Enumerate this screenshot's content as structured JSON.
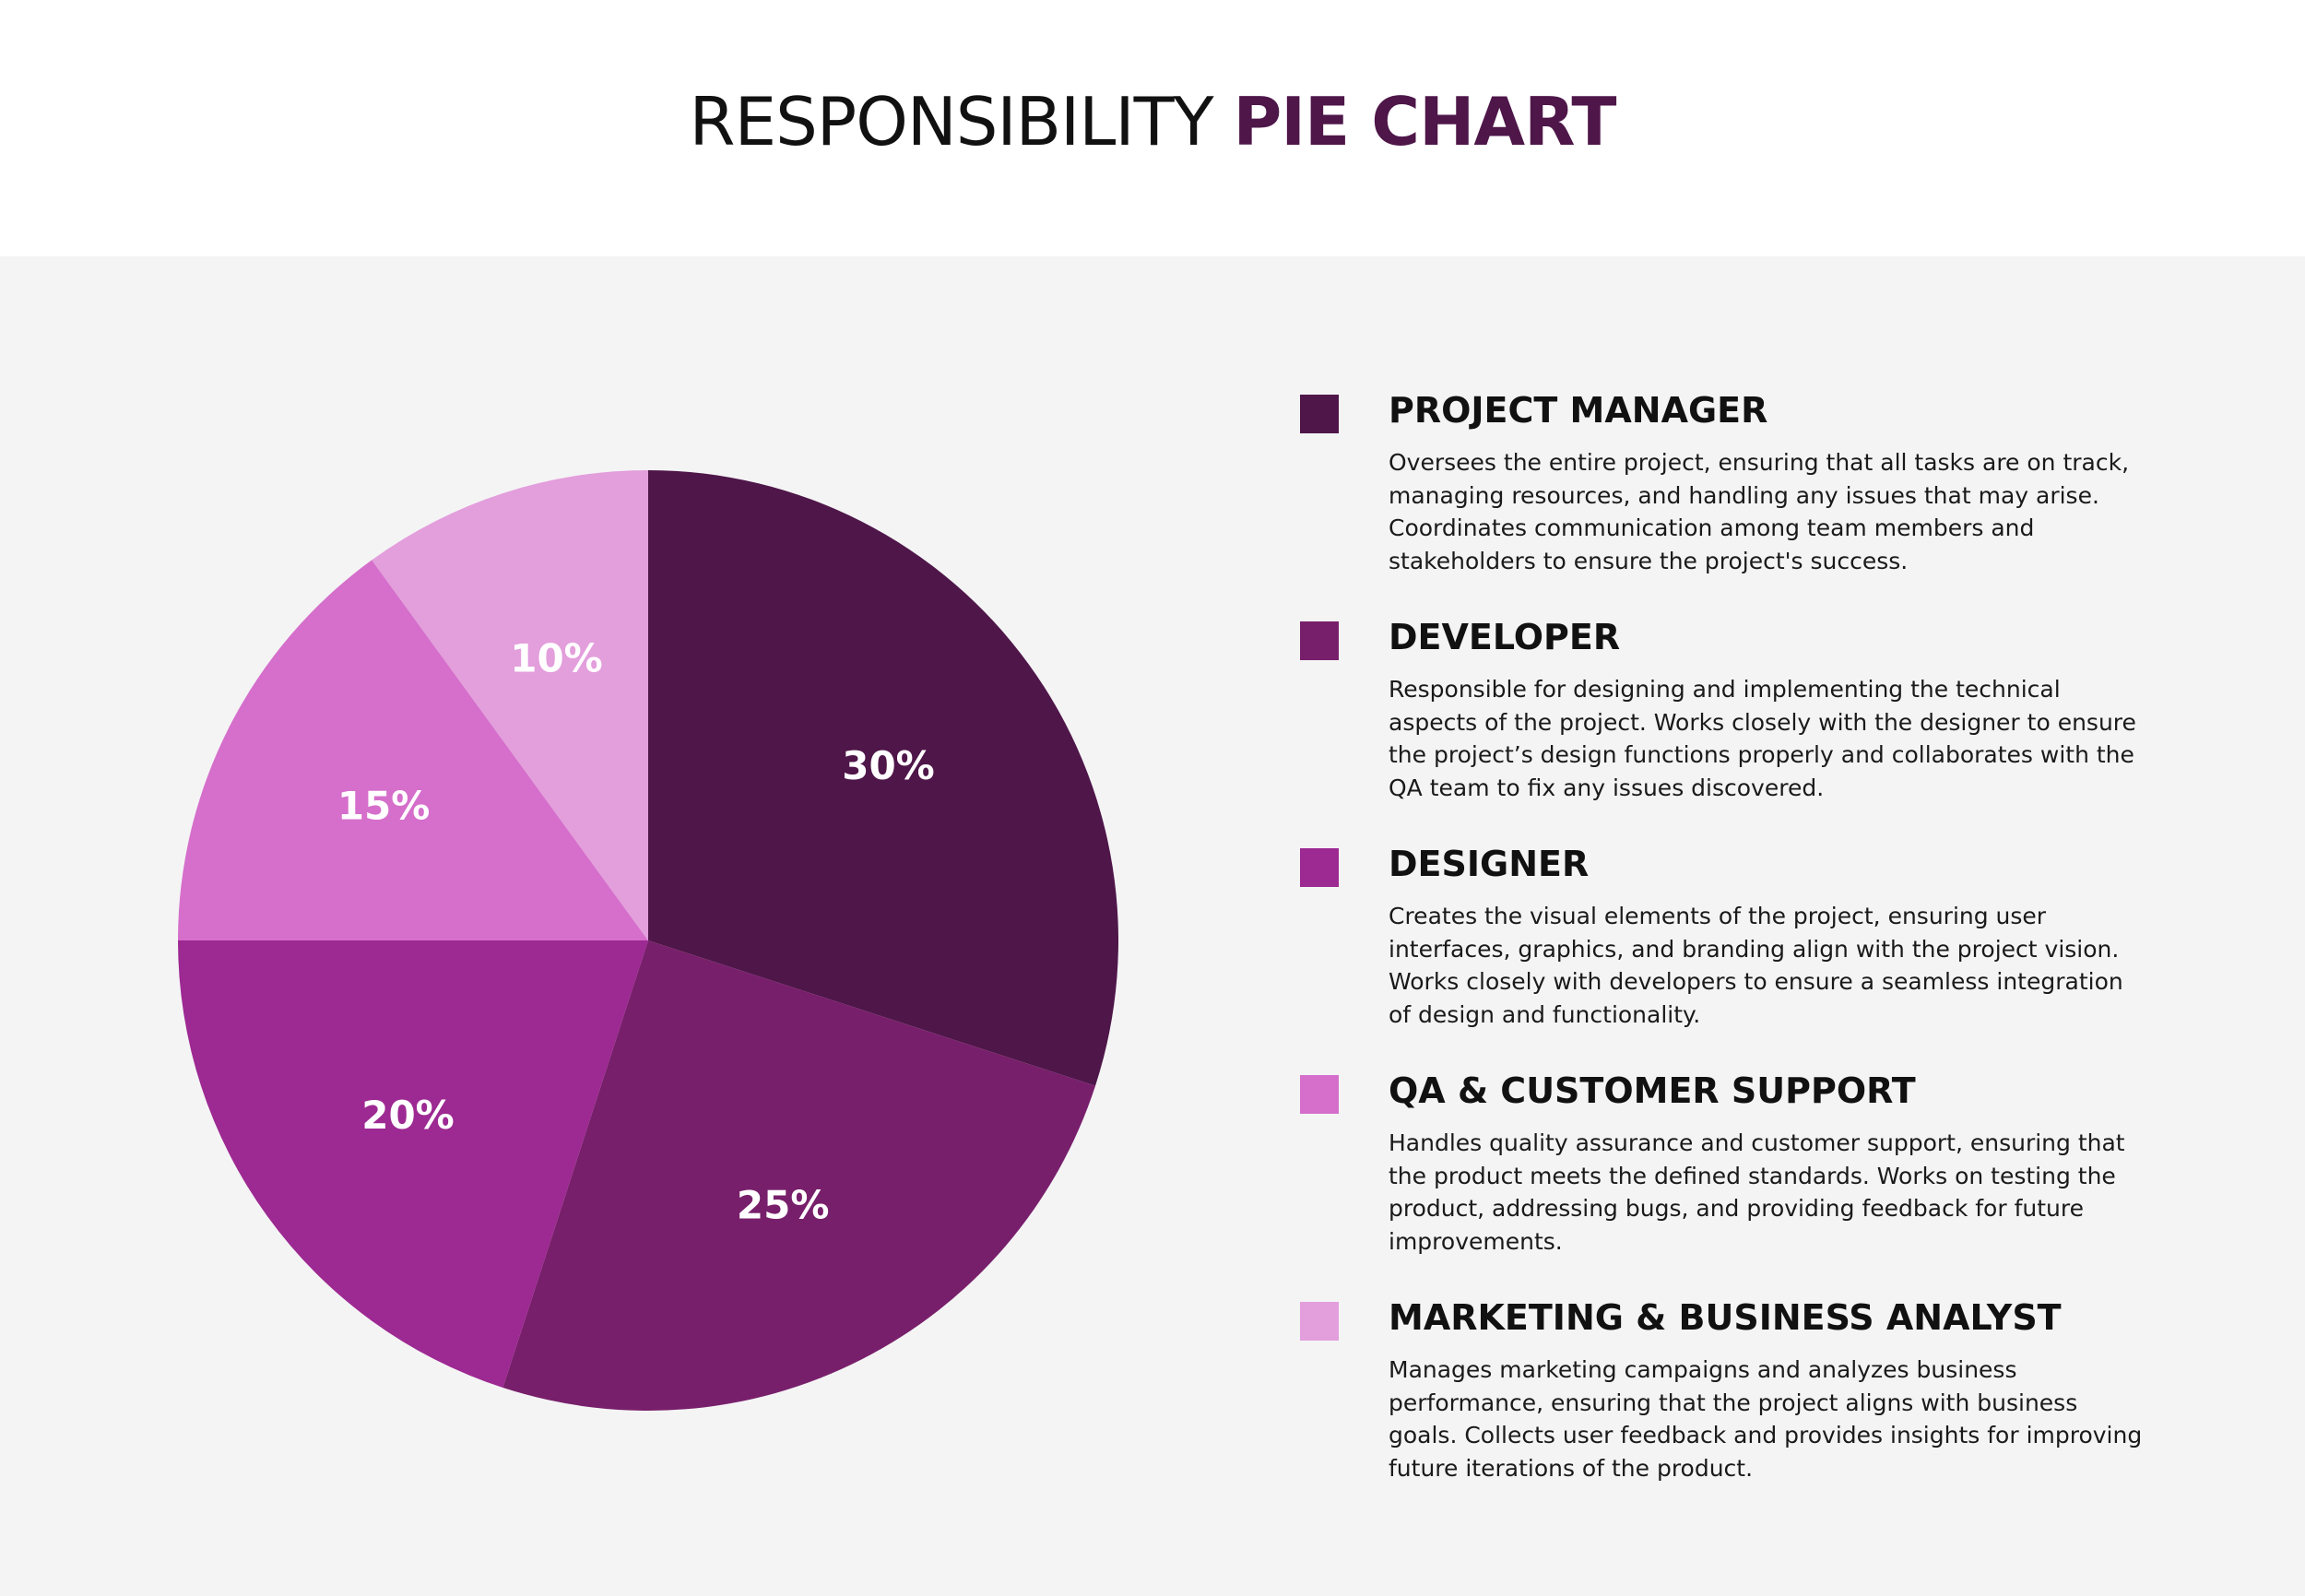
{
  "title": {
    "text": "RESPONSIBILITY",
    "accent": "PIE CHART"
  },
  "colors": {
    "title_accent": "#4e1649",
    "background_panel": "#f4f4f5"
  },
  "chart_data": {
    "type": "pie",
    "title": "RESPONSIBILITY PIE CHART",
    "slices": [
      {
        "label": "PROJECT MANAGER",
        "value": 30,
        "value_label": "30%",
        "color": "#4f1649"
      },
      {
        "label": "DEVELOPER",
        "value": 25,
        "value_label": "25%",
        "color": "#781f6b"
      },
      {
        "label": "DESIGNER",
        "value": 20,
        "value_label": "20%",
        "color": "#9d2992"
      },
      {
        "label": "QA & CUSTOMER SUPPORT",
        "value": 15,
        "value_label": "15%",
        "color": "#d56fcb"
      },
      {
        "label": "MARKETING & BUSINESS ANALYST",
        "value": 10,
        "value_label": "10%",
        "color": "#e39edc"
      }
    ],
    "start": "12 o'clock",
    "direction": "clockwise",
    "legend": "right"
  },
  "legend": {
    "items": [
      {
        "title": "PROJECT MANAGER",
        "color": "#4f1649",
        "description": "Oversees the entire project, ensuring that all tasks are on track, managing resources, and handling any issues that may arise. Coordinates communication among team members and stakeholders to ensure the project's success."
      },
      {
        "title": "DEVELOPER",
        "color": "#781f6b",
        "description": "Responsible for designing and implementing the technical aspects of the project. Works closely with the designer to ensure the project’s design functions properly and collaborates with the QA team to fix any issues discovered."
      },
      {
        "title": "DESIGNER",
        "color": "#9d2992",
        "description": "Creates the visual elements of the project, ensuring user interfaces, graphics, and branding align with the project vision. Works closely with developers to ensure a seamless integration of design and functionality."
      },
      {
        "title": "QA & CUSTOMER SUPPORT",
        "color": "#d56fcb",
        "description": "Handles quality assurance and customer support, ensuring that the product meets the defined standards. Works on testing the product, addressing bugs, and providing feedback for future improvements."
      },
      {
        "title": "MARKETING & BUSINESS ANALYST",
        "color": "#e39edc",
        "description": "Manages marketing campaigns and analyzes business performance, ensuring that the project aligns with business goals. Collects user feedback and provides insights for improving future iterations of the product."
      }
    ]
  }
}
